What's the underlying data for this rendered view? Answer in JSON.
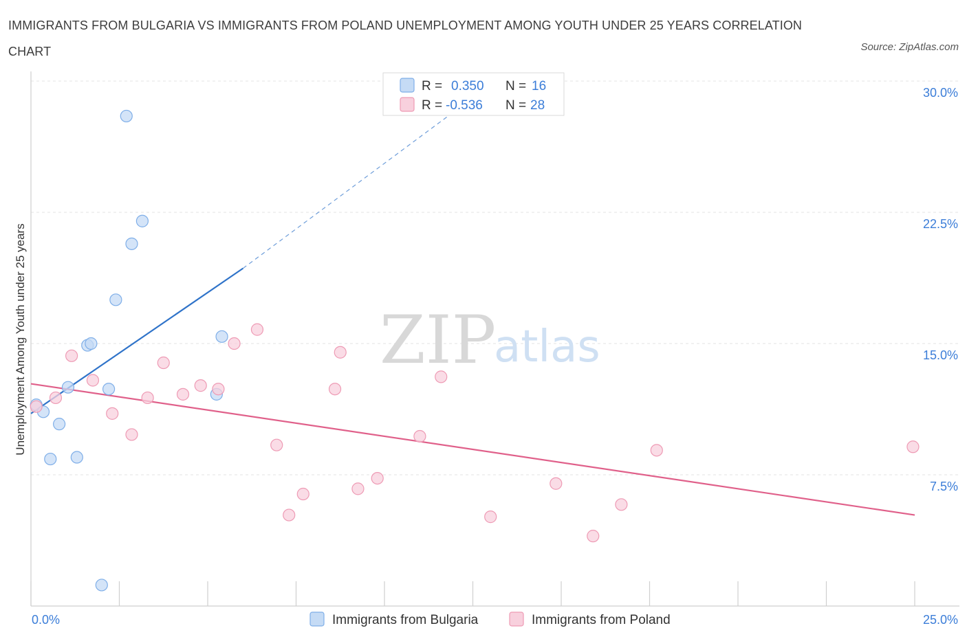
{
  "chart_data": {
    "type": "scatter",
    "title": "IMMIGRANTS FROM BULGARIA VS IMMIGRANTS FROM POLAND UNEMPLOYMENT AMONG YOUTH UNDER 25 YEARS CORRELATION CHART",
    "source": "Source: ZipAtlas.com",
    "xlabel": "",
    "ylabel": "Unemployment Among Youth under 25 years",
    "xlim": [
      0,
      25
    ],
    "ylim": [
      0,
      30
    ],
    "x_tick_labels": [
      {
        "value": 0,
        "label": "0.0%"
      },
      {
        "value": 25,
        "label": "25.0%"
      }
    ],
    "y_tick_labels": [
      {
        "value": 7.5,
        "label": "7.5%"
      },
      {
        "value": 15,
        "label": "15.0%"
      },
      {
        "value": 22.5,
        "label": "22.5%"
      },
      {
        "value": 30,
        "label": "30.0%"
      }
    ],
    "legend_position": "top-center",
    "watermark": {
      "zip": "ZIP",
      "atlas": "atlas"
    },
    "stats": [
      {
        "series": "Immigrants from Bulgaria",
        "r_label": "R =",
        "r_value": "0.350",
        "n_label": "N =",
        "n_value": "16"
      },
      {
        "series": "Immigrants from Poland",
        "r_label": "R =",
        "r_value": "-0.536",
        "n_label": "N =",
        "n_value": "28"
      }
    ],
    "series": [
      {
        "name": "Immigrants from Bulgaria",
        "color": "#7eaee8",
        "fill": "#c5dbf5",
        "line_color": "#2f73c9",
        "trend": {
          "x": [
            0.0,
            6.0
          ],
          "y": [
            11.0,
            19.3
          ]
        },
        "trend_dashed": {
          "x": [
            6.0,
            13.0
          ],
          "y": [
            19.3,
            29.8
          ]
        },
        "points": [
          {
            "x": 0.15,
            "y": 11.5
          },
          {
            "x": 0.35,
            "y": 11.1
          },
          {
            "x": 0.55,
            "y": 8.4
          },
          {
            "x": 0.8,
            "y": 10.4
          },
          {
            "x": 1.05,
            "y": 12.5
          },
          {
            "x": 1.3,
            "y": 8.5
          },
          {
            "x": 1.6,
            "y": 14.9
          },
          {
            "x": 1.7,
            "y": 15.0
          },
          {
            "x": 2.0,
            "y": 1.2
          },
          {
            "x": 2.2,
            "y": 12.4
          },
          {
            "x": 2.4,
            "y": 17.5
          },
          {
            "x": 2.7,
            "y": 28.0
          },
          {
            "x": 2.85,
            "y": 20.7
          },
          {
            "x": 3.15,
            "y": 22.0
          },
          {
            "x": 5.25,
            "y": 12.1
          },
          {
            "x": 5.4,
            "y": 15.4
          }
        ]
      },
      {
        "name": "Immigrants from Poland",
        "color": "#ee9ab4",
        "fill": "#f8d0dd",
        "line_color": "#e0608a",
        "trend": {
          "x": [
            0.0,
            25.0
          ],
          "y": [
            12.7,
            5.2
          ]
        },
        "points": [
          {
            "x": 0.15,
            "y": 11.4
          },
          {
            "x": 0.7,
            "y": 11.9
          },
          {
            "x": 1.15,
            "y": 14.3
          },
          {
            "x": 1.75,
            "y": 12.9
          },
          {
            "x": 2.3,
            "y": 11.0
          },
          {
            "x": 2.85,
            "y": 9.8
          },
          {
            "x": 3.3,
            "y": 11.9
          },
          {
            "x": 3.75,
            "y": 13.9
          },
          {
            "x": 4.3,
            "y": 12.1
          },
          {
            "x": 4.8,
            "y": 12.6
          },
          {
            "x": 5.3,
            "y": 12.4
          },
          {
            "x": 5.75,
            "y": 15.0
          },
          {
            "x": 6.4,
            "y": 15.8
          },
          {
            "x": 6.95,
            "y": 9.2
          },
          {
            "x": 7.3,
            "y": 5.2
          },
          {
            "x": 7.7,
            "y": 6.4
          },
          {
            "x": 8.6,
            "y": 12.4
          },
          {
            "x": 8.75,
            "y": 14.5
          },
          {
            "x": 9.25,
            "y": 6.7
          },
          {
            "x": 9.8,
            "y": 7.3
          },
          {
            "x": 11.0,
            "y": 9.7
          },
          {
            "x": 11.6,
            "y": 13.1
          },
          {
            "x": 13.0,
            "y": 5.1
          },
          {
            "x": 14.85,
            "y": 7.0
          },
          {
            "x": 15.9,
            "y": 4.0
          },
          {
            "x": 16.7,
            "y": 5.8
          },
          {
            "x": 17.7,
            "y": 8.9
          },
          {
            "x": 24.95,
            "y": 9.1
          }
        ]
      }
    ]
  }
}
